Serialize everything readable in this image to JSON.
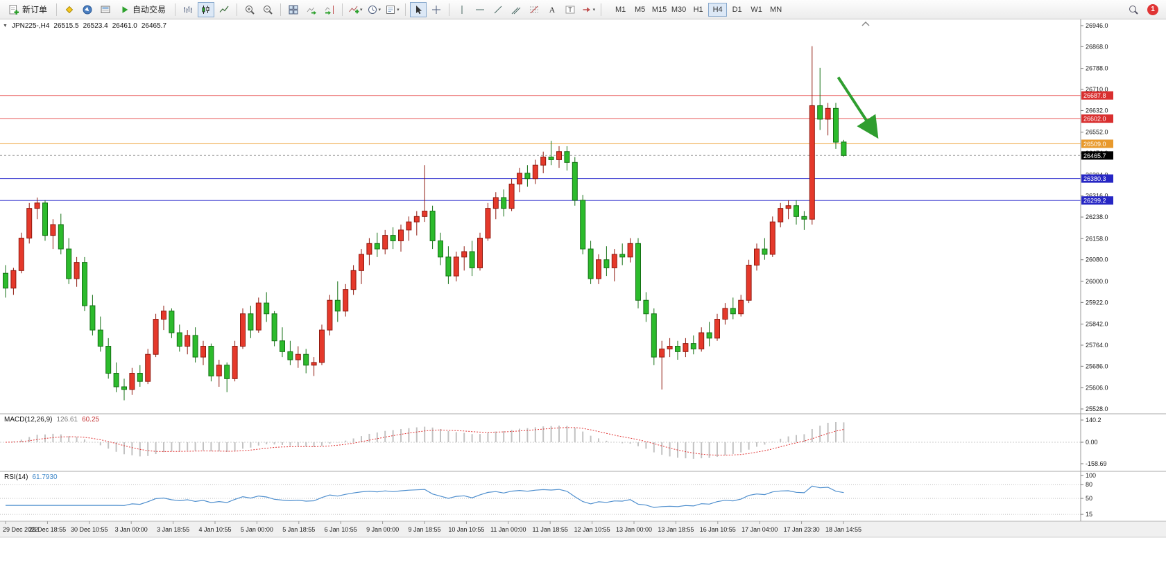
{
  "toolbar": {
    "new_order": "新订单",
    "auto_trading": "自动交易",
    "timeframes": [
      "M1",
      "M5",
      "M15",
      "M30",
      "H1",
      "H4",
      "D1",
      "W1",
      "MN"
    ],
    "active_timeframe": "H4",
    "notification_count": "1"
  },
  "chart_header": {
    "symbol_timeframe": "JPN225-,H4",
    "open": "26515.5",
    "high": "26523.4",
    "low": "26461.0",
    "close": "26465.7"
  },
  "price_scale": {
    "ticks": [
      26946.0,
      26868.0,
      26788.0,
      26710.0,
      26632.0,
      26552.0,
      26474.0,
      26394.0,
      26316.0,
      26238.0,
      26158.0,
      26080.0,
      26000.0,
      25922.0,
      25842.0,
      25764.0,
      25686.0,
      25606.0,
      25528.0
    ],
    "current_price": {
      "value": 26465.7,
      "label": "26465.7",
      "bg": "#000000"
    }
  },
  "levels": [
    {
      "price": 26687.8,
      "label": "26687.8",
      "color": "#e85555",
      "badge": "#d92f2f"
    },
    {
      "price": 26602.0,
      "label": "26602.0",
      "color": "#e85555",
      "badge": "#d92f2f"
    },
    {
      "price": 26509.0,
      "label": "26509.0",
      "color": "#eda239",
      "badge": "#e8992c"
    },
    {
      "price": 26380.3,
      "label": "26380.3",
      "color": "#3c3cd0",
      "badge": "#2626c4"
    },
    {
      "price": 26299.2,
      "label": "26299.2",
      "color": "#3c3cd0",
      "badge": "#2626c4"
    }
  ],
  "chart_data": {
    "type": "candlestick",
    "symbol": "JPN225-",
    "timeframe": "H4",
    "up_color": "#e5392b",
    "down_color": "#2cbb2c",
    "y_range": [
      25528.0,
      26946.0
    ],
    "candles": [
      [
        26030,
        26060,
        25940,
        25975
      ],
      [
        25975,
        26050,
        25950,
        26040
      ],
      [
        26040,
        26180,
        26030,
        26160
      ],
      [
        26160,
        26290,
        26140,
        26270
      ],
      [
        26270,
        26310,
        26230,
        26290
      ],
      [
        26290,
        26300,
        26150,
        26170
      ],
      [
        26170,
        26230,
        26120,
        26210
      ],
      [
        26210,
        26250,
        26100,
        26120
      ],
      [
        26120,
        26160,
        25990,
        26010
      ],
      [
        26010,
        26090,
        25980,
        26070
      ],
      [
        26070,
        26090,
        25890,
        25910
      ],
      [
        25910,
        25950,
        25800,
        25820
      ],
      [
        25820,
        25870,
        25740,
        25760
      ],
      [
        25760,
        25790,
        25640,
        25660
      ],
      [
        25660,
        25700,
        25590,
        25610
      ],
      [
        25610,
        25640,
        25560,
        25600
      ],
      [
        25600,
        25680,
        25580,
        25660
      ],
      [
        25660,
        25690,
        25610,
        25630
      ],
      [
        25630,
        25750,
        25620,
        25730
      ],
      [
        25730,
        25880,
        25720,
        25860
      ],
      [
        25860,
        25910,
        25820,
        25890
      ],
      [
        25890,
        25900,
        25790,
        25810
      ],
      [
        25810,
        25840,
        25740,
        25760
      ],
      [
        25760,
        25820,
        25730,
        25800
      ],
      [
        25800,
        25830,
        25700,
        25720
      ],
      [
        25720,
        25780,
        25690,
        25760
      ],
      [
        25760,
        25770,
        25630,
        25650
      ],
      [
        25650,
        25710,
        25610,
        25690
      ],
      [
        25690,
        25700,
        25590,
        25640
      ],
      [
        25640,
        25780,
        25630,
        25760
      ],
      [
        25760,
        25900,
        25750,
        25880
      ],
      [
        25880,
        25910,
        25790,
        25820
      ],
      [
        25820,
        25940,
        25810,
        25920
      ],
      [
        25920,
        25960,
        25850,
        25880
      ],
      [
        25880,
        25890,
        25760,
        25780
      ],
      [
        25780,
        25830,
        25720,
        25740
      ],
      [
        25740,
        25780,
        25690,
        25710
      ],
      [
        25710,
        25760,
        25680,
        25730
      ],
      [
        25730,
        25750,
        25660,
        25690
      ],
      [
        25690,
        25720,
        25650,
        25700
      ],
      [
        25700,
        25840,
        25690,
        25820
      ],
      [
        25820,
        25950,
        25800,
        25930
      ],
      [
        25930,
        26000,
        25850,
        25890
      ],
      [
        25890,
        25990,
        25870,
        25970
      ],
      [
        25970,
        26060,
        25950,
        26040
      ],
      [
        26040,
        26120,
        25990,
        26100
      ],
      [
        26100,
        26160,
        26060,
        26140
      ],
      [
        26140,
        26180,
        26090,
        26120
      ],
      [
        26120,
        26190,
        26100,
        26170
      ],
      [
        26170,
        26200,
        26120,
        26150
      ],
      [
        26150,
        26210,
        26110,
        26190
      ],
      [
        26190,
        26240,
        26150,
        26220
      ],
      [
        26220,
        26260,
        26170,
        26240
      ],
      [
        26240,
        26430,
        26220,
        26260
      ],
      [
        26260,
        26280,
        26120,
        26150
      ],
      [
        26150,
        26180,
        26060,
        26090
      ],
      [
        26090,
        26130,
        25990,
        26020
      ],
      [
        26020,
        26110,
        26000,
        26090
      ],
      [
        26090,
        26130,
        26040,
        26110
      ],
      [
        26110,
        26150,
        26020,
        26050
      ],
      [
        26050,
        26180,
        26040,
        26160
      ],
      [
        26160,
        26290,
        26150,
        26270
      ],
      [
        26270,
        26330,
        26230,
        26310
      ],
      [
        26310,
        26340,
        26240,
        26270
      ],
      [
        26270,
        26380,
        26260,
        26360
      ],
      [
        26360,
        26420,
        26330,
        26400
      ],
      [
        26400,
        26430,
        26350,
        26380
      ],
      [
        26380,
        26450,
        26360,
        26430
      ],
      [
        26430,
        26480,
        26400,
        26460
      ],
      [
        26460,
        26520,
        26430,
        26450
      ],
      [
        26450,
        26500,
        26420,
        26480
      ],
      [
        26480,
        26500,
        26410,
        26440
      ],
      [
        26440,
        26460,
        26280,
        26300
      ],
      [
        26300,
        26320,
        26100,
        26120
      ],
      [
        26120,
        26150,
        25990,
        26010
      ],
      [
        26010,
        26100,
        25990,
        26080
      ],
      [
        26080,
        26130,
        26020,
        26050
      ],
      [
        26050,
        26120,
        26000,
        26100
      ],
      [
        26100,
        26140,
        26060,
        26090
      ],
      [
        26090,
        26160,
        26070,
        26140
      ],
      [
        26140,
        26160,
        25900,
        25930
      ],
      [
        25930,
        25960,
        25850,
        25880
      ],
      [
        25880,
        25900,
        25690,
        25720
      ],
      [
        25720,
        25780,
        25600,
        25750
      ],
      [
        25750,
        25790,
        25720,
        25760
      ],
      [
        25760,
        25780,
        25710,
        25740
      ],
      [
        25740,
        25790,
        25720,
        25770
      ],
      [
        25770,
        25800,
        25730,
        25750
      ],
      [
        25750,
        25830,
        25740,
        25810
      ],
      [
        25810,
        25850,
        25760,
        25790
      ],
      [
        25790,
        25880,
        25780,
        25860
      ],
      [
        25860,
        25920,
        25840,
        25900
      ],
      [
        25900,
        25940,
        25860,
        25880
      ],
      [
        25880,
        25950,
        25870,
        25930
      ],
      [
        25930,
        26080,
        25920,
        26060
      ],
      [
        26060,
        26140,
        26040,
        26120
      ],
      [
        26120,
        26160,
        26080,
        26100
      ],
      [
        26100,
        26240,
        26090,
        26220
      ],
      [
        26220,
        26290,
        26200,
        26270
      ],
      [
        26270,
        26300,
        26230,
        26280
      ],
      [
        26280,
        26300,
        26210,
        26240
      ],
      [
        26240,
        26260,
        26190,
        26230
      ],
      [
        26230,
        26870,
        26210,
        26650
      ],
      [
        26650,
        26790,
        26560,
        26600
      ],
      [
        26600,
        26660,
        26540,
        26640
      ],
      [
        26640,
        26660,
        26490,
        26515
      ],
      [
        26515.5,
        26523.4,
        26461.0,
        26465.7
      ]
    ],
    "time_labels": [
      "29 Dec 2022",
      "29 Dec 18:55",
      "30 Dec 10:55",
      "3 Jan 00:00",
      "3 Jan 18:55",
      "4 Jan 10:55",
      "5 Jan 00:00",
      "5 Jan 18:55",
      "6 Jan 10:55",
      "9 Jan 00:00",
      "9 Jan 18:55",
      "10 Jan 10:55",
      "11 Jan 00:00",
      "11 Jan 18:55",
      "12 Jan 10:55",
      "13 Jan 00:00",
      "13 Jan 18:55",
      "16 Jan 10:55",
      "17 Jan 04:00",
      "17 Jan 23:30",
      "18 Jan 14:55"
    ]
  },
  "annotations": {
    "arrow": {
      "from_bar": 105.3,
      "from_price": 26755,
      "to_bar": 110,
      "to_price": 26545,
      "color": "#2f9e2f"
    }
  },
  "macd": {
    "name": "MACD(12,26,9)",
    "value_main": "126.61",
    "value_signal": "60.25",
    "scale": [
      "140.2",
      "0.00",
      "-158.69"
    ],
    "histogram_color": "#c2c2c2",
    "signal_color": "#e03434"
  },
  "rsi": {
    "name": "RSI(14)",
    "value": "61.7930",
    "scale": [
      "100",
      "80",
      "50",
      "15"
    ],
    "levels": [
      80,
      50,
      15
    ],
    "line_color": "#4f8fce"
  }
}
